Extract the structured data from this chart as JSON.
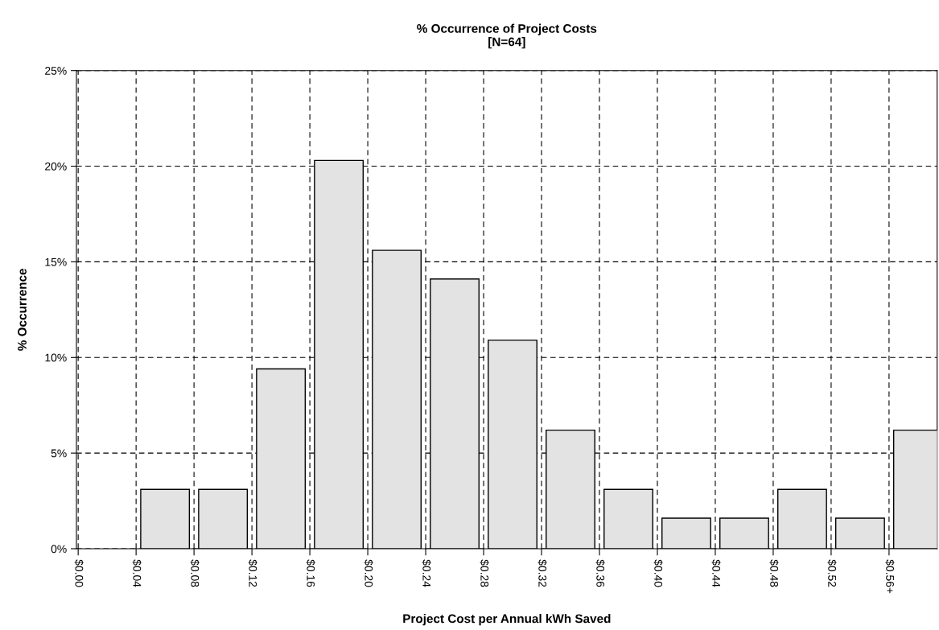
{
  "chart_data": {
    "type": "bar",
    "title": "% Occurrence of Project Costs\n[N=64]",
    "xlabel": "Project Cost per Annual kWh Saved",
    "ylabel": "% Occurrence",
    "categories": [
      "$0.00",
      "$0.04",
      "$0.08",
      "$0.12",
      "$0.16",
      "$0.20",
      "$0.24",
      "$0.28",
      "$0.32",
      "$0.36",
      "$0.40",
      "$0.44",
      "$0.48",
      "$0.52",
      "$0.56+"
    ],
    "values": [
      0,
      3.1,
      3.1,
      9.4,
      20.3,
      15.6,
      14.1,
      10.9,
      6.2,
      3.1,
      1.6,
      1.6,
      3.1,
      1.6,
      6.2
    ],
    "color": "#e3e3e3",
    "ylim": [
      0,
      25
    ],
    "yticks": [
      {
        "value": 0,
        "label": "0%"
      },
      {
        "value": 5,
        "label": "5%"
      },
      {
        "value": 10,
        "label": "10%"
      },
      {
        "value": 15,
        "label": "15%"
      },
      {
        "value": 20,
        "label": "20%"
      },
      {
        "value": 25,
        "label": "25%"
      }
    ],
    "grid": true,
    "legend": false
  }
}
